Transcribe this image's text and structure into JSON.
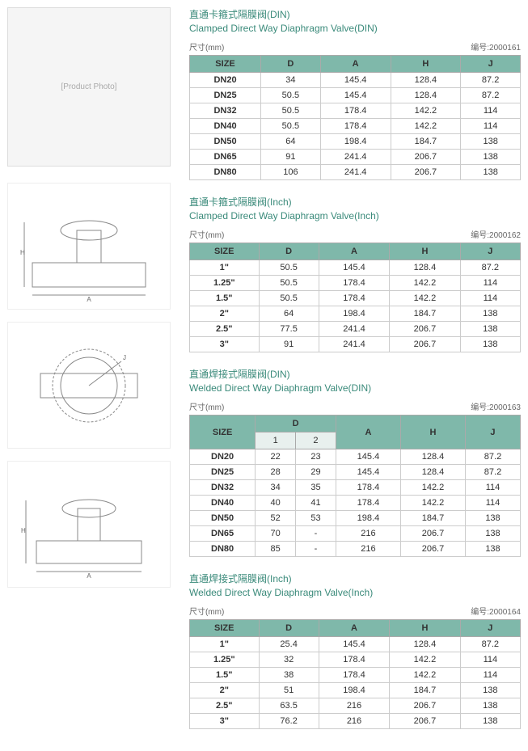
{
  "sections": [
    {
      "title_cn": "直通卡箍式隔膜阀(DIN)",
      "title_en": "Clamped Direct Way Diaphragm Valve(DIN)",
      "dim_label": "尺寸(mm)",
      "code": "编号:2000161",
      "columns": [
        "SIZE",
        "D",
        "A",
        "H",
        "J"
      ],
      "rows": [
        [
          "DN20",
          "34",
          "145.4",
          "128.4",
          "87.2"
        ],
        [
          "DN25",
          "50.5",
          "145.4",
          "128.4",
          "87.2"
        ],
        [
          "DN32",
          "50.5",
          "178.4",
          "142.2",
          "114"
        ],
        [
          "DN40",
          "50.5",
          "178.4",
          "142.2",
          "114"
        ],
        [
          "DN50",
          "64",
          "198.4",
          "184.7",
          "138"
        ],
        [
          "DN65",
          "91",
          "241.4",
          "206.7",
          "138"
        ],
        [
          "DN80",
          "106",
          "241.4",
          "206.7",
          "138"
        ]
      ]
    },
    {
      "title_cn": "直通卡箍式隔膜阀(Inch)",
      "title_en": "Clamped Direct Way Diaphragm Valve(Inch)",
      "dim_label": "尺寸(mm)",
      "code": "编号:2000162",
      "columns": [
        "SIZE",
        "D",
        "A",
        "H",
        "J"
      ],
      "rows": [
        [
          "1\"",
          "50.5",
          "145.4",
          "128.4",
          "87.2"
        ],
        [
          "1.25\"",
          "50.5",
          "178.4",
          "142.2",
          "114"
        ],
        [
          "1.5\"",
          "50.5",
          "178.4",
          "142.2",
          "114"
        ],
        [
          "2\"",
          "64",
          "198.4",
          "184.7",
          "138"
        ],
        [
          "2.5\"",
          "77.5",
          "241.4",
          "206.7",
          "138"
        ],
        [
          "3\"",
          "91",
          "241.4",
          "206.7",
          "138"
        ]
      ]
    },
    {
      "title_cn": "直通焊接式隔膜阀(DIN)",
      "title_en": "Welded Direct Way Diaphragm Valve(DIN)",
      "dim_label": "尺寸(mm)",
      "code": "编号:2000163",
      "columns_top": [
        "SIZE",
        "D",
        "A",
        "H",
        "J"
      ],
      "sub_columns": [
        "1",
        "2"
      ],
      "rows": [
        [
          "DN20",
          "22",
          "23",
          "145.4",
          "128.4",
          "87.2"
        ],
        [
          "DN25",
          "28",
          "29",
          "145.4",
          "128.4",
          "87.2"
        ],
        [
          "DN32",
          "34",
          "35",
          "178.4",
          "142.2",
          "114"
        ],
        [
          "DN40",
          "40",
          "41",
          "178.4",
          "142.2",
          "114"
        ],
        [
          "DN50",
          "52",
          "53",
          "198.4",
          "184.7",
          "138"
        ],
        [
          "DN65",
          "70",
          "-",
          "216",
          "206.7",
          "138"
        ],
        [
          "DN80",
          "85",
          "-",
          "216",
          "206.7",
          "138"
        ]
      ]
    },
    {
      "title_cn": "直通焊接式隔膜阀(Inch)",
      "title_en": "Welded Direct Way Diaphragm Valve(Inch)",
      "dim_label": "尺寸(mm)",
      "code": "编号:2000164",
      "columns": [
        "SIZE",
        "D",
        "A",
        "H",
        "J"
      ],
      "rows": [
        [
          "1\"",
          "25.4",
          "145.4",
          "128.4",
          "87.2"
        ],
        [
          "1.25\"",
          "32",
          "178.4",
          "142.2",
          "114"
        ],
        [
          "1.5\"",
          "38",
          "178.4",
          "142.2",
          "114"
        ],
        [
          "2\"",
          "51",
          "198.4",
          "184.7",
          "138"
        ],
        [
          "2.5\"",
          "63.5",
          "216",
          "206.7",
          "138"
        ],
        [
          "3\"",
          "76.2",
          "216",
          "206.7",
          "138"
        ]
      ]
    }
  ],
  "image_labels": {
    "product": "[Product Photo]",
    "diagram1": "[Side Diagram]",
    "diagram2": "[Top Diagram]",
    "diagram3": "[Welded Diagram]"
  }
}
